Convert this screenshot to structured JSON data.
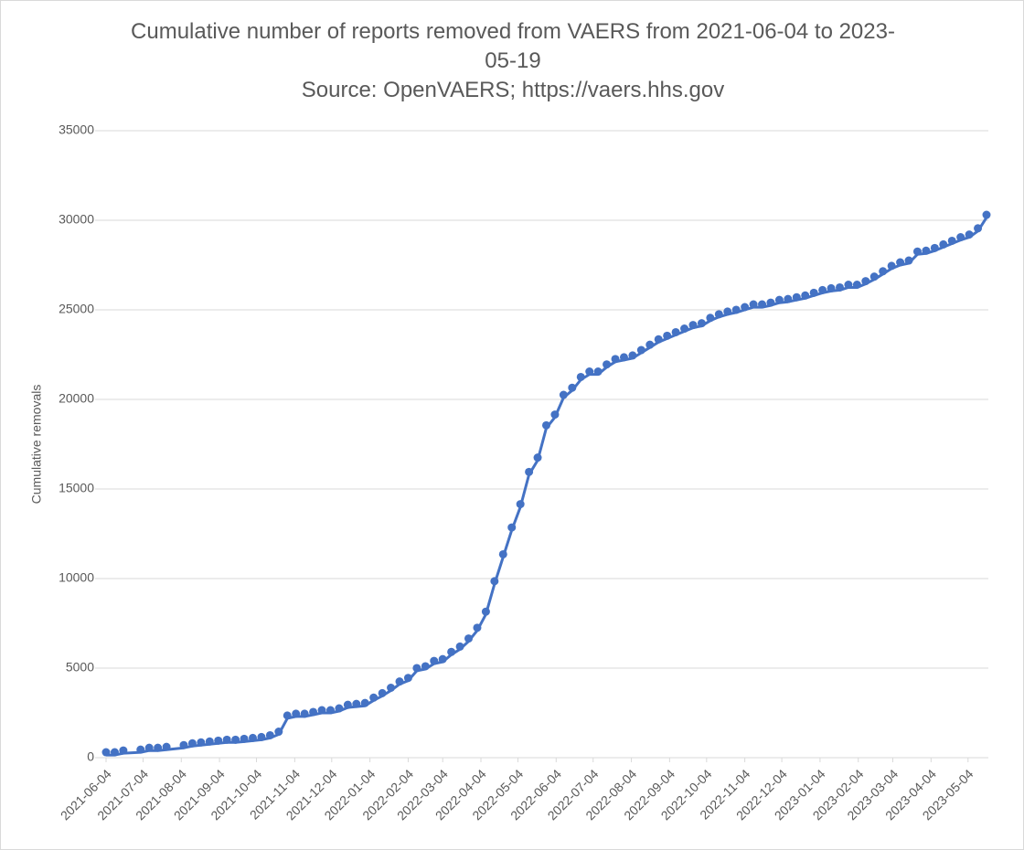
{
  "chart_data": {
    "type": "line",
    "title": "Cumulative number of reports removed from VAERS from 2021-06-04 to 2023-05-19",
    "subtitle": "Source: OpenVAERS; https://vaers.hhs.gov",
    "y_label": "Cumulative removals",
    "color": "#4472c4",
    "x": [
      "2021-06-04",
      "2021-06-11",
      "2021-06-18",
      "2021-07-02",
      "2021-07-09",
      "2021-07-16",
      "2021-07-23",
      "2021-08-06",
      "2021-08-13",
      "2021-08-20",
      "2021-08-27",
      "2021-09-03",
      "2021-09-10",
      "2021-09-17",
      "2021-09-24",
      "2021-10-01",
      "2021-10-08",
      "2021-10-15",
      "2021-10-22",
      "2021-10-29",
      "2021-11-05",
      "2021-11-12",
      "2021-11-19",
      "2021-11-26",
      "2021-12-03",
      "2021-12-10",
      "2021-12-17",
      "2021-12-24",
      "2021-12-31",
      "2022-01-07",
      "2022-01-14",
      "2022-01-21",
      "2022-01-28",
      "2022-02-04",
      "2022-02-11",
      "2022-02-18",
      "2022-02-25",
      "2022-03-04",
      "2022-03-11",
      "2022-03-18",
      "2022-03-25",
      "2022-04-01",
      "2022-04-08",
      "2022-04-15",
      "2022-04-22",
      "2022-04-29",
      "2022-05-06",
      "2022-05-13",
      "2022-05-20",
      "2022-05-27",
      "2022-06-03",
      "2022-06-10",
      "2022-06-17",
      "2022-06-24",
      "2022-07-01",
      "2022-07-08",
      "2022-07-15",
      "2022-07-22",
      "2022-07-29",
      "2022-08-05",
      "2022-08-12",
      "2022-08-19",
      "2022-08-26",
      "2022-09-02",
      "2022-09-09",
      "2022-09-16",
      "2022-09-23",
      "2022-09-30",
      "2022-10-07",
      "2022-10-14",
      "2022-10-21",
      "2022-10-28",
      "2022-11-04",
      "2022-11-11",
      "2022-11-18",
      "2022-11-25",
      "2022-12-02",
      "2022-12-09",
      "2022-12-16",
      "2022-12-23",
      "2022-12-30",
      "2023-01-06",
      "2023-01-13",
      "2023-01-20",
      "2023-01-27",
      "2023-02-03",
      "2023-02-10",
      "2023-02-17",
      "2023-02-24",
      "2023-03-03",
      "2023-03-10",
      "2023-03-17",
      "2023-03-24",
      "2023-03-31",
      "2023-04-07",
      "2023-04-14",
      "2023-04-21",
      "2023-04-28",
      "2023-05-05",
      "2023-05-12",
      "2023-05-19"
    ],
    "values": [
      150,
      150,
      250,
      300,
      400,
      400,
      450,
      550,
      650,
      700,
      750,
      800,
      850,
      850,
      900,
      950,
      1000,
      1100,
      1300,
      2200,
      2300,
      2300,
      2400,
      2500,
      2500,
      2600,
      2800,
      2850,
      2900,
      3200,
      3450,
      3750,
      4100,
      4300,
      4850,
      4950,
      5250,
      5350,
      5750,
      6050,
      6500,
      7100,
      8000,
      9700,
      11200,
      12700,
      14000,
      15800,
      16600,
      18400,
      19000,
      20100,
      20500,
      21100,
      21400,
      21400,
      21800,
      22100,
      22200,
      22300,
      22600,
      22900,
      23200,
      23400,
      23600,
      23800,
      24000,
      24100,
      24400,
      24600,
      24750,
      24850,
      25000,
      25150,
      25150,
      25250,
      25400,
      25450,
      25550,
      25650,
      25800,
      25950,
      26050,
      26100,
      26250,
      26250,
      26450,
      26700,
      27000,
      27300,
      27500,
      27600,
      28100,
      28150,
      28300,
      28500,
      28700,
      28900,
      29050,
      29400,
      30150
    ],
    "xlim": [
      "2021-06-04",
      "2023-05-19"
    ],
    "xticks": [
      "2021-06-04",
      "2021-07-04",
      "2021-08-04",
      "2021-09-04",
      "2021-10-04",
      "2021-11-04",
      "2021-12-04",
      "2022-01-04",
      "2022-02-04",
      "2022-03-04",
      "2022-04-04",
      "2022-05-04",
      "2022-06-04",
      "2022-07-04",
      "2022-08-04",
      "2022-09-04",
      "2022-10-04",
      "2022-11-04",
      "2022-12-04",
      "2023-01-04",
      "2023-02-04",
      "2023-03-04",
      "2023-04-04",
      "2023-05-04"
    ],
    "ylim": [
      0,
      35000
    ],
    "yticks": [
      0,
      5000,
      10000,
      15000,
      20000,
      25000,
      30000,
      35000
    ],
    "grid": true
  }
}
